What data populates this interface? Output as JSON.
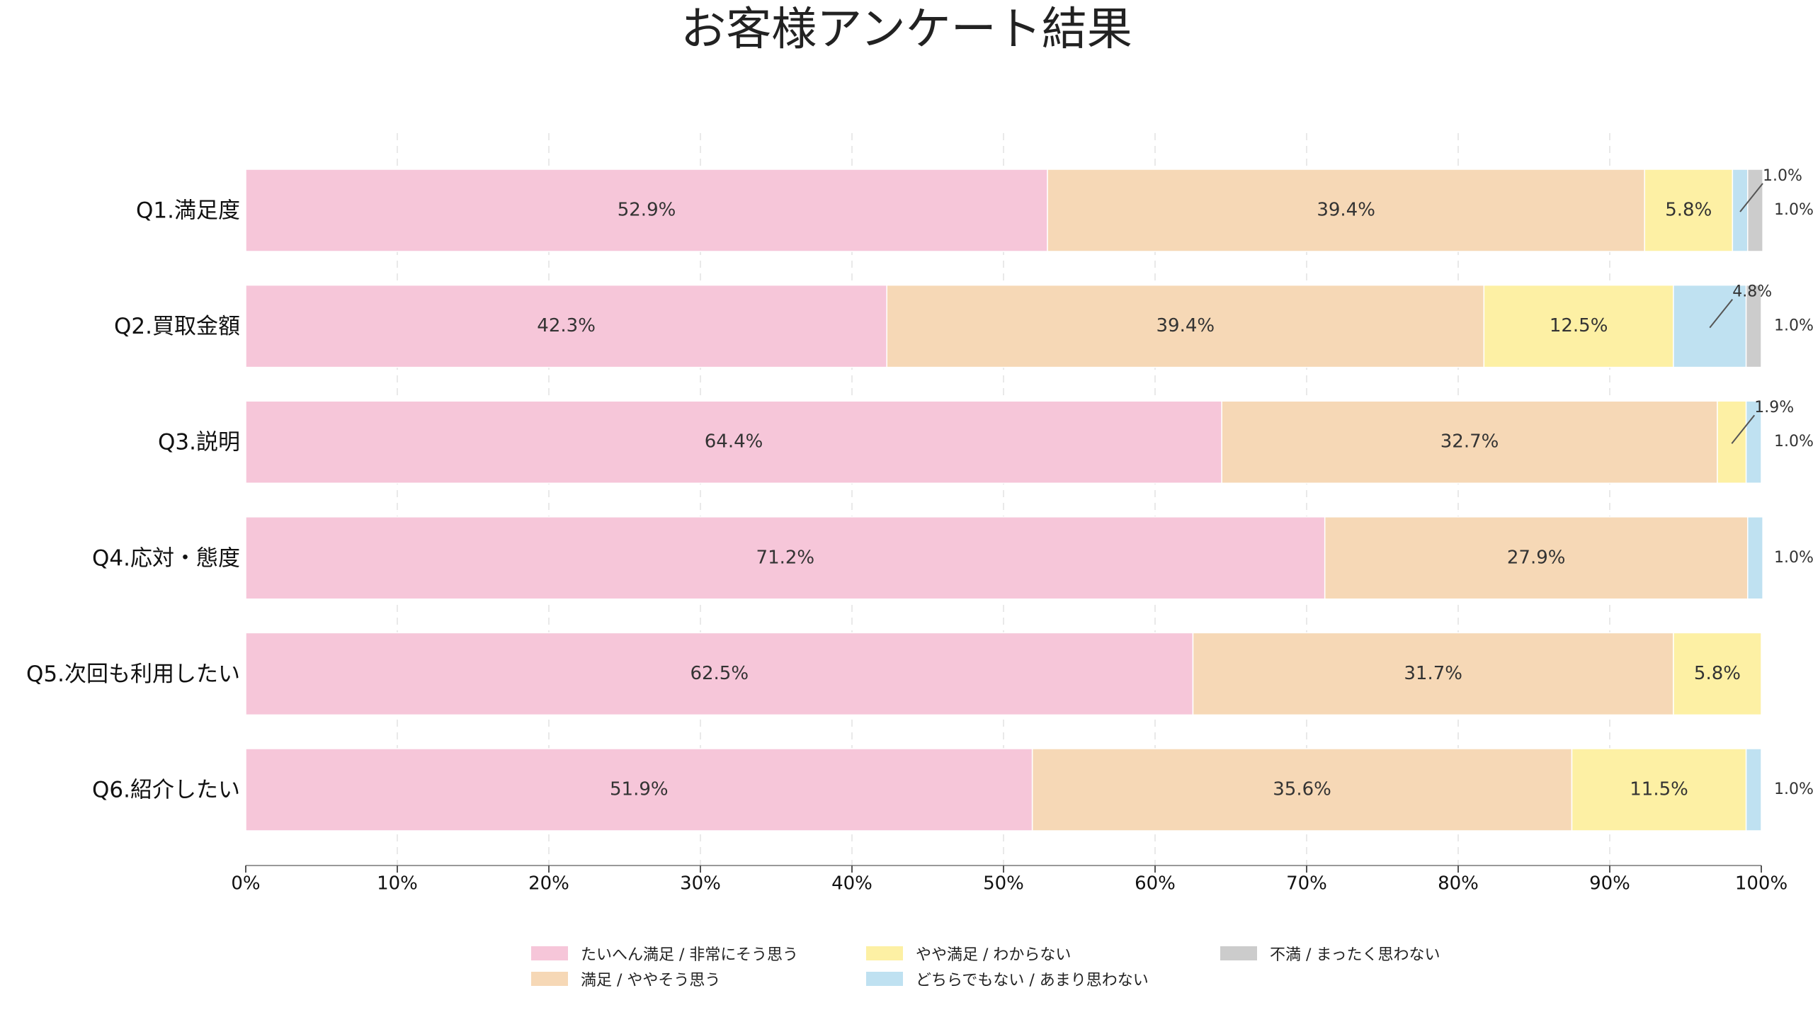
{
  "chart_data": {
    "type": "bar",
    "orientation": "horizontal",
    "stacked": true,
    "title": "お客様アンケート結果",
    "categories": [
      "Q1.満足度",
      "Q2.買取金額",
      "Q3.説明",
      "Q4.応対・態度",
      "Q5.次回も利用したい",
      "Q6.紹介したい"
    ],
    "series": [
      {
        "name": "たいへん満足 / 非常にそう思う",
        "color": "#f6c6d9",
        "values": [
          52.9,
          42.3,
          64.4,
          71.2,
          62.5,
          51.9
        ]
      },
      {
        "name": "満足 / ややそう思う",
        "color": "#f6d8b6",
        "values": [
          39.4,
          39.4,
          32.7,
          27.9,
          31.7,
          35.6
        ]
      },
      {
        "name": "やや満足 / わからない",
        "color": "#fdf0a4",
        "values": [
          5.8,
          12.5,
          1.9,
          0,
          5.8,
          11.5
        ]
      },
      {
        "name": "どちらでもない / あまり思わない",
        "color": "#bfe1f1",
        "values": [
          1.0,
          4.8,
          1.0,
          1.0,
          0,
          1.0
        ]
      },
      {
        "name": "不満 / まったく思わない",
        "color": "#cccccc",
        "values": [
          1.0,
          1.0,
          0,
          0,
          0,
          0
        ]
      }
    ],
    "data_labels": [
      [
        "52.9%",
        "39.4%",
        "5.8%",
        "1.0%",
        "1.0%"
      ],
      [
        "42.3%",
        "39.4%",
        "12.5%",
        "4.8%",
        "1.0%"
      ],
      [
        "64.4%",
        "32.7%",
        "1.9%",
        "1.0%",
        ""
      ],
      [
        "71.2%",
        "27.9%",
        "",
        "1.0%",
        ""
      ],
      [
        "62.5%",
        "31.7%",
        "5.8%",
        "",
        ""
      ],
      [
        "51.9%",
        "35.6%",
        "11.5%",
        "1.0%",
        ""
      ]
    ],
    "xlim": [
      0,
      100
    ],
    "x_ticks": [
      "0%",
      "10%",
      "20%",
      "30%",
      "40%",
      "50%",
      "60%",
      "70%",
      "80%",
      "90%",
      "100%"
    ],
    "grid": "vertical dashed",
    "legend_position": "bottom-center"
  }
}
